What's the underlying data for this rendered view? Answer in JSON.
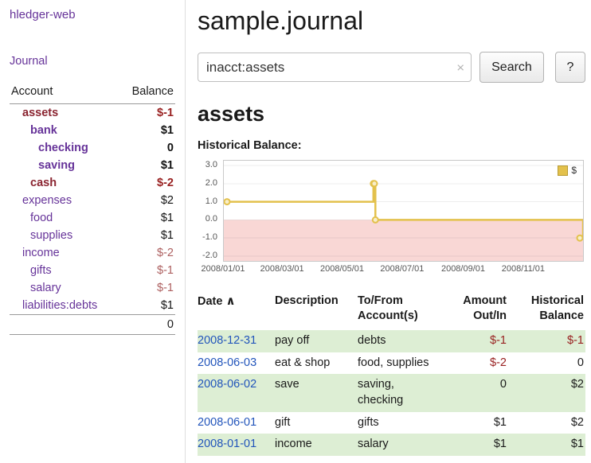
{
  "colors": {
    "purple": "#663399",
    "maroon": "#8a2430",
    "neg_strong": "#992121",
    "neg_muted": "#ad5f5f",
    "link_blue": "#2255bb",
    "row_green": "#ddeed4",
    "chart_line": "#e3c14c",
    "chart_marker_fill": "#f8eec9",
    "chart_fill_neg": "#f9d7d5",
    "text": "#1a1a1a"
  },
  "app": {
    "brand": "hledger-web",
    "nav": {
      "journal": "Journal"
    }
  },
  "sidebar": {
    "table_header": {
      "account": "Account",
      "balance": "Balance"
    },
    "accounts": [
      {
        "name": "assets",
        "indent": 1,
        "bold": true,
        "maroon": true,
        "balance": "$-1",
        "balance_style": "neg-strong",
        "balance_bold": true
      },
      {
        "name": "bank",
        "indent": 2,
        "bold": true,
        "maroon": false,
        "balance": "$1",
        "balance_style": "normal",
        "balance_bold": true
      },
      {
        "name": "checking",
        "indent": 3,
        "bold": true,
        "maroon": false,
        "balance": "0",
        "balance_style": "normal",
        "balance_bold": true
      },
      {
        "name": "saving",
        "indent": 3,
        "bold": true,
        "maroon": false,
        "balance": "$1",
        "balance_style": "normal",
        "balance_bold": true
      },
      {
        "name": "cash",
        "indent": 2,
        "bold": true,
        "maroon": true,
        "balance": "$-2",
        "balance_style": "neg-strong",
        "balance_bold": true
      },
      {
        "name": "expenses",
        "indent": 1,
        "bold": false,
        "maroon": false,
        "balance": "$2",
        "balance_style": "normal",
        "balance_bold": false
      },
      {
        "name": "food",
        "indent": 2,
        "bold": false,
        "maroon": false,
        "balance": "$1",
        "balance_style": "normal",
        "balance_bold": false
      },
      {
        "name": "supplies",
        "indent": 2,
        "bold": false,
        "maroon": false,
        "balance": "$1",
        "balance_style": "normal",
        "balance_bold": false
      },
      {
        "name": "income",
        "indent": 1,
        "bold": false,
        "maroon": false,
        "balance": "$-2",
        "balance_style": "neg-muted",
        "balance_bold": false
      },
      {
        "name": "gifts",
        "indent": 2,
        "bold": false,
        "maroon": false,
        "balance": "$-1",
        "balance_style": "neg-muted",
        "balance_bold": false
      },
      {
        "name": "salary",
        "indent": 2,
        "bold": false,
        "maroon": false,
        "balance": "$-1",
        "balance_style": "neg-muted",
        "balance_bold": false
      },
      {
        "name": "liabilities:debts",
        "indent": 1,
        "bold": false,
        "maroon": false,
        "balance": "$1",
        "balance_style": "normal",
        "balance_bold": false
      }
    ],
    "total": "0"
  },
  "main": {
    "title": "sample.journal",
    "search": {
      "value": "inacct:assets",
      "clear": "×",
      "button_label": "Search",
      "help_label": "?"
    },
    "account_heading": "assets",
    "chart_title": "Historical Balance:",
    "register": {
      "headers": {
        "date": "Date",
        "sort_indicator": "∧",
        "description": "Description",
        "accounts": "To/From Account(s)",
        "amount": "Amount Out/In",
        "balance": "Historical Balance"
      },
      "rows": [
        {
          "date": "2008-12-31",
          "description": "pay off",
          "accounts": "debts",
          "amount": "$-1",
          "amount_negative": true,
          "balance": "$-1",
          "balance_negative": true,
          "shaded": true
        },
        {
          "date": "2008-06-03",
          "description": "eat & shop",
          "accounts": "food, supplies",
          "amount": "$-2",
          "amount_negative": true,
          "balance": "0",
          "balance_negative": false,
          "shaded": false
        },
        {
          "date": "2008-06-02",
          "description": "save",
          "accounts": "saving, checking",
          "amount": "0",
          "amount_negative": false,
          "balance": "$2",
          "balance_negative": false,
          "shaded": true
        },
        {
          "date": "2008-06-01",
          "description": "gift",
          "accounts": "gifts",
          "amount": "$1",
          "amount_negative": false,
          "balance": "$2",
          "balance_negative": false,
          "shaded": false
        },
        {
          "date": "2008-01-01",
          "description": "income",
          "accounts": "salary",
          "amount": "$1",
          "amount_negative": false,
          "balance": "$1",
          "balance_negative": false,
          "shaded": true
        }
      ]
    }
  },
  "chart_data": {
    "type": "line",
    "title": "Historical Balance",
    "step": true,
    "legend": [
      {
        "label": "$"
      }
    ],
    "legend_position": "top-right",
    "ylim": [
      -2.0,
      3.0
    ],
    "yticks": [
      3.0,
      2.0,
      1.0,
      0.0,
      -1.0,
      -2.0
    ],
    "x_range": [
      "2008/01/01",
      "2008/12/31"
    ],
    "xticks": [
      "2008/01/01",
      "2008/03/01",
      "2008/05/01",
      "2008/07/01",
      "2008/09/01",
      "2008/11/01"
    ],
    "series": [
      {
        "name": "$",
        "points": [
          [
            "2008/01/01",
            1.0
          ],
          [
            "2008/06/01",
            2.0
          ],
          [
            "2008/06/02",
            2.0
          ],
          [
            "2008/06/03",
            0.0
          ],
          [
            "2008/12/31",
            -1.0
          ]
        ]
      }
    ],
    "negative_region_shaded": true,
    "grid": true
  }
}
